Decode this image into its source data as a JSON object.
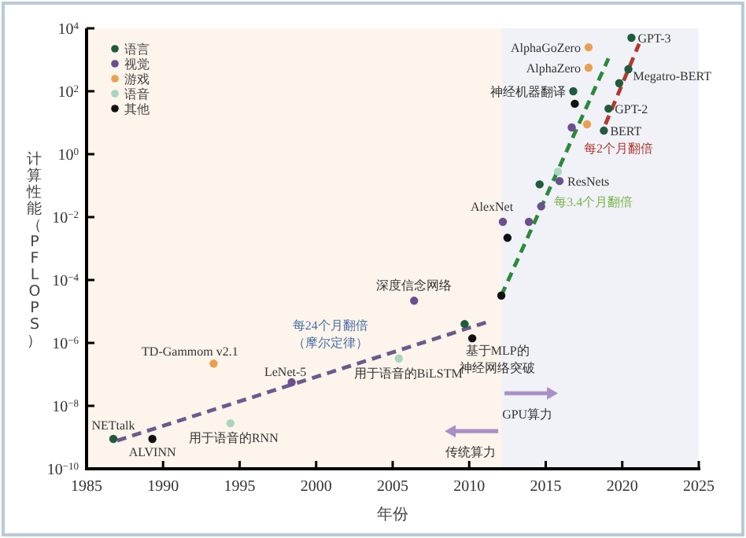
{
  "chart_data": {
    "type": "scatter",
    "xlabel": "年份",
    "ylabel": "计算性能（PFLOPS）",
    "log": "y",
    "xlim": [
      1985,
      2025
    ],
    "xticks": [
      1985,
      1990,
      1995,
      2000,
      2005,
      2010,
      2015,
      2020,
      2025
    ],
    "ylim": [
      1e-10,
      10000
    ],
    "yticks": [
      {
        "value": 1e-10,
        "label": "10$^{−10}$"
      },
      {
        "value": 1e-08,
        "label": "10$^{−8}$"
      },
      {
        "value": 1e-06,
        "label": "10$^{−6}$"
      },
      {
        "value": 0.0001,
        "label": "10$^{−4}$"
      },
      {
        "value": 0.01,
        "label": "10$^{−2}$"
      },
      {
        "value": 1,
        "label": "10$^{0}$"
      },
      {
        "value": 100,
        "label": "10$^{2}$"
      },
      {
        "value": 10000,
        "label": "10$^{4}$"
      }
    ],
    "grid": false,
    "legend": "top left",
    "marker": "circle",
    "bands": [
      {
        "axis": "x",
        "from": 1985,
        "to": 2012.1,
        "color": "#fdf4ec"
      },
      {
        "axis": "x",
        "from": 2012.1,
        "to": 2025,
        "color": "#f1f1f8"
      }
    ],
    "series": [
      {
        "name": "语言",
        "color": "#1f5c3d",
        "x": [
          1986.75,
          2009.7,
          2014.6,
          2016.8,
          2020.6,
          2020.4,
          2019.8,
          2019.1,
          2018.8
        ],
        "values": [
          8.9e-10,
          4e-06,
          0.11,
          100,
          5000,
          500,
          180,
          28,
          5.6
        ]
      },
      {
        "name": "视觉",
        "color": "#6b4f8e",
        "x": [
          1998.4,
          2006.4,
          2012.2,
          2013.9,
          2014.7,
          2015.9,
          2016.7
        ],
        "values": [
          5.6e-08,
          2.2e-05,
          0.0071,
          0.0071,
          0.022,
          0.14,
          7.1
        ]
      },
      {
        "name": "游戏",
        "color": "#e8a04e",
        "x": [
          1993.3,
          2017.7,
          2017.8,
          2017.8
        ],
        "values": [
          2.2e-07,
          8.9,
          560,
          2500
        ]
      },
      {
        "name": "语音",
        "color": "#a9d5c1",
        "x": [
          1994.4,
          2005.4,
          2015.8
        ],
        "values": [
          2.8e-09,
          3.2e-07,
          0.28
        ]
      },
      {
        "name": "其他",
        "color": "#111111",
        "x": [
          1989.3,
          2010.2,
          2012.1,
          2012.5,
          2016.9
        ],
        "values": [
          8.9e-10,
          1.4e-06,
          3.2e-05,
          0.0022,
          40
        ]
      },
      {
        "type": "line",
        "marker": "none",
        "line_style": "dashed",
        "color": "#6b5a8e",
        "x": [
          1987,
          2011.4
        ],
        "values": [
          7.9e-10,
          5e-06
        ]
      },
      {
        "type": "line",
        "marker": "none",
        "line_style": "dashed",
        "color": "#2a8a3a",
        "x": [
          2012.1,
          2019.1
        ],
        "values": [
          3.2e-05,
          1100
        ]
      },
      {
        "type": "line",
        "marker": "none",
        "line_style": "dashed",
        "color": "#b03a2e",
        "x": [
          2018.9,
          2021.1
        ],
        "values": [
          8.9,
          3200
        ]
      }
    ],
    "annotations": [
      {
        "text": "NETtalk",
        "x": 1986.75,
        "y": 8.9e-10
      },
      {
        "text": "ALVINN",
        "x": 1989.3,
        "y": 8.9e-10
      },
      {
        "text": "TD-Gammom v2.1",
        "x": 1993.3,
        "y": 2.2e-07
      },
      {
        "text": "用于语音的RNN",
        "x": 1994.4,
        "y": 2.8e-09
      },
      {
        "text": "LeNet-5",
        "x": 1998.4,
        "y": 5.6e-08
      },
      {
        "text": "深度信念网络",
        "x": 2006.4,
        "y": 2.2e-05
      },
      {
        "text": "用于语音的BiLSTM",
        "x": 2005.4,
        "y": 3.2e-07
      },
      {
        "text": "基于MLP的神经网络突破",
        "x": 2010.2,
        "y": 1.4e-06
      },
      {
        "text": "AlexNet",
        "x": 2012.2,
        "y": 0.0071
      },
      {
        "text": "ResNets",
        "x": 2015.9,
        "y": 0.14
      },
      {
        "text": "神经机器翻译",
        "x": 2016.8,
        "y": 100
      },
      {
        "text": "AlphaZero",
        "x": 2017.8,
        "y": 560
      },
      {
        "text": "AlphaGoZero",
        "x": 2017.8,
        "y": 2500
      },
      {
        "text": "GPT-3",
        "x": 2020.6,
        "y": 5000
      },
      {
        "text": "Megatro-BERT",
        "x": 2020.4,
        "y": 500
      },
      {
        "text": "GPT-2",
        "x": 2019.1,
        "y": 28
      },
      {
        "text": "BERT",
        "x": 2018.8,
        "y": 5.6
      },
      "每2个月翻倍",
      "每3.4个月翻倍",
      "每24个月翻倍（摩尔定律）",
      "GPU算力",
      "传统算力"
    ]
  }
}
